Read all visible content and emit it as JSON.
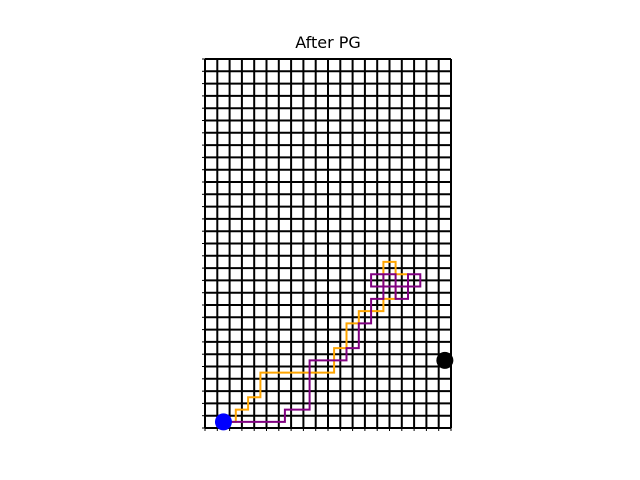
{
  "title": "After PG",
  "grid": {
    "cols": 20,
    "rows": 30
  },
  "colors": {
    "grid": "#000000",
    "start": "#0000ff",
    "goal": "#000000",
    "path_a": "#ffa500",
    "path_b": "#800080"
  },
  "start": [
    1.5,
    0.5
  ],
  "goal": [
    19.5,
    5.5
  ],
  "paths": [
    {
      "color_key": "path_a",
      "points": [
        [
          1.5,
          0.5
        ],
        [
          2.5,
          0.5
        ],
        [
          2.5,
          1.5
        ],
        [
          3.5,
          1.5
        ],
        [
          3.5,
          2.5
        ],
        [
          4.5,
          2.5
        ],
        [
          4.5,
          4.5
        ],
        [
          5.5,
          4.5
        ],
        [
          6.5,
          4.5
        ],
        [
          7.5,
          4.5
        ],
        [
          8.5,
          4.5
        ],
        [
          9.5,
          4.5
        ],
        [
          10.5,
          4.5
        ],
        [
          10.5,
          6.5
        ],
        [
          11.5,
          6.5
        ],
        [
          11.5,
          8.5
        ],
        [
          12.5,
          8.5
        ],
        [
          12.5,
          9.5
        ],
        [
          14.5,
          9.5
        ],
        [
          14.5,
          10.5
        ],
        [
          15.5,
          10.5
        ],
        [
          15.5,
          11.5
        ],
        [
          14.5,
          11.5
        ],
        [
          14.5,
          13.5
        ],
        [
          15.5,
          13.5
        ],
        [
          15.5,
          12.5
        ],
        [
          16.5,
          12.5
        ],
        [
          16.5,
          11.5
        ],
        [
          17.5,
          11.5
        ]
      ]
    },
    {
      "color_key": "path_b",
      "points": [
        [
          1.5,
          0.5
        ],
        [
          2.5,
          0.5
        ],
        [
          6.5,
          0.5
        ],
        [
          6.5,
          1.5
        ],
        [
          8.5,
          1.5
        ],
        [
          8.5,
          5.5
        ],
        [
          11.5,
          5.5
        ],
        [
          11.5,
          6.5
        ],
        [
          12.5,
          6.5
        ],
        [
          12.5,
          8.5
        ],
        [
          13.5,
          8.5
        ],
        [
          13.5,
          10.5
        ],
        [
          14.5,
          10.5
        ],
        [
          14.5,
          11.5
        ],
        [
          13.5,
          11.5
        ],
        [
          13.5,
          12.5
        ],
        [
          15.5,
          12.5
        ],
        [
          15.5,
          11.5
        ],
        [
          16.5,
          11.5
        ],
        [
          17.5,
          11.5
        ],
        [
          17.5,
          12.5
        ],
        [
          16.5,
          12.5
        ],
        [
          16.5,
          11.5
        ],
        [
          14.5,
          11.5
        ],
        [
          14.5,
          12.5
        ],
        [
          15.5,
          12.5
        ],
        [
          15.5,
          10.5
        ],
        [
          16.5,
          10.5
        ],
        [
          16.5,
          11.5
        ],
        [
          15.5,
          11.5
        ]
      ]
    }
  ]
}
